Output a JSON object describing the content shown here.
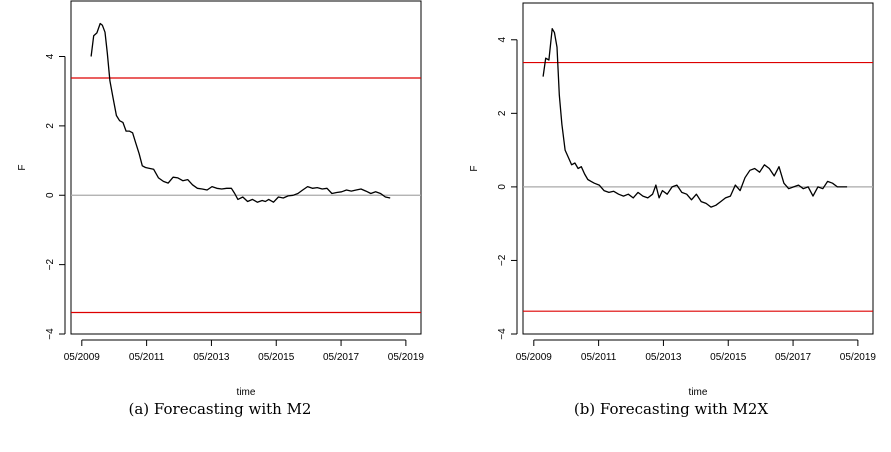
{
  "chart_data": [
    {
      "type": "line",
      "caption": "(a) Forecasting with M2",
      "xlabel": "time",
      "ylabel": "F",
      "ylim": [
        -4,
        5.6
      ],
      "xlim": [
        2009.0,
        2019.8
      ],
      "yticks": [
        "−4",
        "−2",
        "0",
        "2",
        "4"
      ],
      "xticks": [
        "05/2009",
        "05/2011",
        "05/2013",
        "05/2015",
        "05/2017",
        "05/2019"
      ],
      "hlines": [
        {
          "y": 3.38,
          "color": "#dd0000"
        },
        {
          "y": -3.38,
          "color": "#dd0000"
        },
        {
          "y": 0,
          "color": "#aaaaaa"
        }
      ],
      "series": [
        {
          "color": "#000000",
          "x": [
            2009.62,
            2009.7,
            2009.8,
            2009.9,
            2009.97,
            2010.05,
            2010.12,
            2010.2,
            2010.3,
            2010.4,
            2010.5,
            2010.6,
            2010.7,
            2010.8,
            2010.9,
            2011.0,
            2011.1,
            2011.2,
            2011.3,
            2011.4,
            2011.55,
            2011.7,
            2011.85,
            2012.0,
            2012.15,
            2012.3,
            2012.45,
            2012.6,
            2012.75,
            2012.9,
            2013.05,
            2013.2,
            2013.35,
            2013.5,
            2013.65,
            2013.8,
            2013.95,
            2014.05,
            2014.15,
            2014.3,
            2014.45,
            2014.6,
            2014.75,
            2014.9,
            2015.0,
            2015.1,
            2015.25,
            2015.4,
            2015.55,
            2015.7,
            2015.85,
            2016.0,
            2016.15,
            2016.3,
            2016.45,
            2016.6,
            2016.75,
            2016.9,
            2017.05,
            2017.2,
            2017.35,
            2017.5,
            2017.65,
            2017.8,
            2017.95,
            2018.1,
            2018.25,
            2018.4,
            2018.55,
            2018.7,
            2018.85
          ],
          "values": [
            4.0,
            4.6,
            4.68,
            4.95,
            4.9,
            4.7,
            4.1,
            3.3,
            2.8,
            2.3,
            2.15,
            2.1,
            1.85,
            1.85,
            1.8,
            1.5,
            1.2,
            0.85,
            0.8,
            0.78,
            0.75,
            0.5,
            0.4,
            0.35,
            0.52,
            0.5,
            0.42,
            0.45,
            0.3,
            0.2,
            0.18,
            0.15,
            0.25,
            0.2,
            0.18,
            0.2,
            0.2,
            0.05,
            -0.12,
            -0.05,
            -0.18,
            -0.12,
            -0.2,
            -0.15,
            -0.18,
            -0.12,
            -0.2,
            -0.05,
            -0.08,
            -0.02,
            0.0,
            0.05,
            0.15,
            0.25,
            0.2,
            0.22,
            0.18,
            0.2,
            0.05,
            0.08,
            0.1,
            0.15,
            0.12,
            0.15,
            0.18,
            0.12,
            0.05,
            0.1,
            0.05,
            -0.05,
            -0.08
          ]
        }
      ]
    },
    {
      "type": "line",
      "caption": "(b) Forecasting with M2X",
      "xlabel": "time",
      "ylabel": "F",
      "ylim": [
        -4,
        5.0
      ],
      "xlim": [
        2009.0,
        2019.8
      ],
      "yticks": [
        "−4",
        "−2",
        "0",
        "2",
        "4"
      ],
      "xticks": [
        "05/2009",
        "05/2011",
        "05/2013",
        "05/2015",
        "05/2017",
        "05/2019"
      ],
      "hlines": [
        {
          "y": 3.38,
          "color": "#dd0000"
        },
        {
          "y": -3.38,
          "color": "#dd0000"
        },
        {
          "y": 0,
          "color": "#aaaaaa"
        }
      ],
      "series": [
        {
          "color": "#000000",
          "x": [
            2009.62,
            2009.7,
            2009.8,
            2009.9,
            2009.97,
            2010.05,
            2010.12,
            2010.2,
            2010.3,
            2010.4,
            2010.5,
            2010.6,
            2010.7,
            2010.8,
            2010.9,
            2011.0,
            2011.1,
            2011.2,
            2011.35,
            2011.5,
            2011.65,
            2011.8,
            2011.95,
            2012.1,
            2012.25,
            2012.4,
            2012.55,
            2012.7,
            2012.85,
            2013.0,
            2013.1,
            2013.2,
            2013.3,
            2013.45,
            2013.6,
            2013.75,
            2013.9,
            2014.05,
            2014.2,
            2014.35,
            2014.5,
            2014.65,
            2014.8,
            2014.95,
            2015.1,
            2015.25,
            2015.4,
            2015.55,
            2015.7,
            2015.85,
            2016.0,
            2016.15,
            2016.3,
            2016.45,
            2016.6,
            2016.75,
            2016.9,
            2017.05,
            2017.2,
            2017.35,
            2017.5,
            2017.65,
            2017.8,
            2017.95,
            2018.1,
            2018.25,
            2018.4,
            2018.55,
            2018.7,
            2018.85,
            2019.0
          ],
          "values": [
            3.0,
            3.5,
            3.45,
            4.3,
            4.2,
            3.8,
            2.5,
            1.7,
            1.0,
            0.8,
            0.6,
            0.65,
            0.5,
            0.55,
            0.35,
            0.2,
            0.15,
            0.1,
            0.05,
            -0.1,
            -0.15,
            -0.12,
            -0.2,
            -0.25,
            -0.2,
            -0.3,
            -0.15,
            -0.25,
            -0.3,
            -0.2,
            0.05,
            -0.3,
            -0.1,
            -0.2,
            0.0,
            0.05,
            -0.15,
            -0.2,
            -0.35,
            -0.2,
            -0.4,
            -0.45,
            -0.55,
            -0.5,
            -0.4,
            -0.3,
            -0.25,
            0.05,
            -0.1,
            0.25,
            0.45,
            0.5,
            0.4,
            0.6,
            0.5,
            0.3,
            0.55,
            0.1,
            -0.05,
            0.0,
            0.05,
            -0.05,
            0.0,
            -0.25,
            0.0,
            -0.05,
            0.15,
            0.1,
            0.0,
            0.0,
            0.0
          ]
        }
      ]
    }
  ]
}
